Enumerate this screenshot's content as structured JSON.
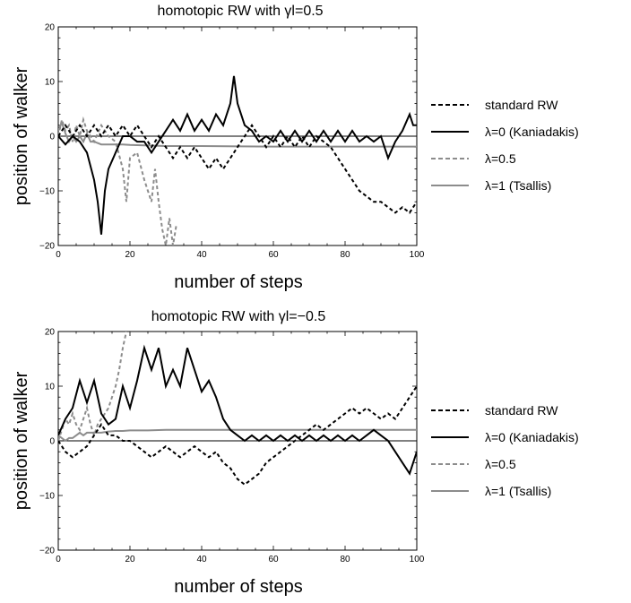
{
  "figure": {
    "chart_data": [
      {
        "type": "line",
        "title": "homotopic RW with γl=0.5",
        "xlabel": "number of steps",
        "ylabel": "position of walker",
        "xlim": [
          0,
          100
        ],
        "ylim": [
          -20,
          20
        ],
        "xticks": [
          "0",
          "20",
          "40",
          "60",
          "80",
          "100"
        ],
        "yticks": [
          "-20",
          "-10",
          "0",
          "10",
          "20"
        ],
        "legend_position": "right",
        "series": [
          {
            "name": "standard RW",
            "color": "#000000",
            "dash": "dashed",
            "x": [
              0,
              2,
              4,
              6,
              8,
              10,
              12,
              14,
              16,
              18,
              20,
              22,
              24,
              26,
              28,
              30,
              32,
              34,
              36,
              38,
              40,
              42,
              44,
              46,
              48,
              50,
              52,
              54,
              56,
              58,
              60,
              62,
              64,
              66,
              68,
              70,
              72,
              74,
              76,
              78,
              80,
              82,
              84,
              86,
              88,
              90,
              92,
              94,
              96,
              98,
              100
            ],
            "y": [
              0,
              2,
              0,
              2,
              0,
              2,
              0,
              2,
              0,
              2,
              0,
              2,
              0,
              -2,
              0,
              -2,
              -4,
              -2,
              -4,
              -2,
              -4,
              -6,
              -4,
              -6,
              -4,
              -2,
              0,
              2,
              0,
              -2,
              0,
              -2,
              0,
              -2,
              0,
              -2,
              0,
              -1,
              -2,
              -4,
              -6,
              -8,
              -10,
              -11,
              -12,
              -12,
              -13,
              -14,
              -13,
              -14,
              -12
            ]
          },
          {
            "name": "λ=0 (Kaniadakis)",
            "color": "#000000",
            "dash": "solid",
            "x": [
              0,
              2,
              4,
              6,
              8,
              10,
              11,
              12,
              13,
              14,
              16,
              18,
              20,
              22,
              24,
              26,
              28,
              30,
              32,
              34,
              36,
              38,
              40,
              42,
              44,
              46,
              48,
              49,
              50,
              52,
              54,
              56,
              58,
              60,
              62,
              64,
              66,
              68,
              70,
              72,
              74,
              76,
              78,
              80,
              82,
              84,
              86,
              88,
              90,
              92,
              94,
              96,
              98,
              99,
              100
            ],
            "y": [
              0,
              -1.5,
              0,
              -1,
              -3,
              -8,
              -12,
              -18,
              -10,
              -6,
              -3,
              0,
              0,
              -1,
              -1,
              -3,
              -1,
              1,
              3,
              1,
              4,
              1,
              3,
              1,
              4,
              2,
              6,
              11,
              6,
              2,
              1,
              -1,
              0,
              -1,
              1,
              -1,
              1,
              -1,
              1,
              -1,
              1,
              -1,
              1,
              -1,
              1,
              -1,
              0,
              -1,
              0,
              -4,
              -1,
              1,
              4,
              2,
              2
            ]
          },
          {
            "name": "λ=0.5",
            "color": "#8c8c8c",
            "dash": "dashed",
            "x": [
              0,
              1,
              2,
              3,
              4,
              5,
              6,
              7,
              8,
              10,
              12,
              14,
              16,
              18,
              19,
              20,
              22,
              24,
              26,
              27,
              28,
              29,
              30,
              31,
              32,
              33
            ],
            "y": [
              0,
              3,
              1,
              2,
              -1,
              2,
              0,
              3,
              1,
              -1,
              2,
              0,
              -1,
              -6,
              -12,
              -4,
              -3,
              -8,
              -12,
              -6,
              -12,
              -17,
              -20,
              -15,
              -20,
              -16
            ]
          },
          {
            "name": "λ=1 (Tsallis)",
            "color": "#8c8c8c",
            "dash": "solid",
            "x": [
              0,
              1,
              2,
              3,
              4,
              5,
              6,
              7,
              8,
              9,
              10,
              12,
              14,
              16,
              18,
              20,
              25,
              30,
              40,
              60,
              80,
              100
            ],
            "y": [
              1,
              2.5,
              0.5,
              -1,
              0,
              -1,
              0,
              -1,
              0.5,
              -1,
              -1,
              -1.5,
              -1.5,
              -1.5,
              -1.5,
              -1.6,
              -1.7,
              -1.8,
              -1.8,
              -1.9,
              -1.9,
              -1.9
            ]
          }
        ]
      },
      {
        "type": "line",
        "title": "homotopic RW with γl=−0.5",
        "xlabel": "number of steps",
        "ylabel": "position of walker",
        "xlim": [
          0,
          100
        ],
        "ylim": [
          -20,
          20
        ],
        "xticks": [
          "0",
          "20",
          "40",
          "60",
          "80",
          "100"
        ],
        "yticks": [
          "-20",
          "-10",
          "0",
          "10",
          "20"
        ],
        "legend_position": "right",
        "series": [
          {
            "name": "standard RW",
            "color": "#000000",
            "dash": "dashed",
            "x": [
              0,
              2,
              4,
              6,
              8,
              10,
              12,
              14,
              16,
              18,
              20,
              22,
              24,
              26,
              28,
              30,
              32,
              34,
              36,
              38,
              40,
              42,
              44,
              46,
              48,
              50,
              52,
              54,
              56,
              58,
              60,
              62,
              64,
              66,
              68,
              70,
              72,
              74,
              76,
              78,
              80,
              82,
              84,
              86,
              88,
              90,
              92,
              94,
              96,
              98,
              100
            ],
            "y": [
              0,
              -2,
              -3,
              -2,
              -1,
              1,
              3,
              1,
              1,
              0,
              0,
              -1,
              -2,
              -3,
              -2,
              -1,
              -2,
              -3,
              -2,
              -1,
              -2,
              -3,
              -2,
              -4,
              -5,
              -7,
              -8,
              -7,
              -6,
              -4,
              -3,
              -2,
              -1,
              0,
              1,
              2,
              3,
              2,
              3,
              4,
              5,
              6,
              5,
              6,
              5,
              4,
              5,
              4,
              6,
              8,
              10
            ]
          },
          {
            "name": "λ=0 (Kaniadakis)",
            "color": "#000000",
            "dash": "solid",
            "x": [
              0,
              2,
              4,
              6,
              8,
              10,
              12,
              14,
              16,
              18,
              20,
              22,
              24,
              26,
              28,
              30,
              32,
              34,
              36,
              38,
              40,
              42,
              44,
              46,
              48,
              50,
              52,
              54,
              56,
              58,
              60,
              62,
              64,
              66,
              68,
              70,
              72,
              74,
              76,
              78,
              80,
              82,
              84,
              86,
              88,
              90,
              92,
              94,
              96,
              98,
              100
            ],
            "y": [
              1,
              4,
              6,
              11,
              7,
              11,
              5,
              3,
              4,
              10,
              6,
              11,
              17,
              13,
              17,
              10,
              13,
              10,
              17,
              13,
              9,
              11,
              8,
              4,
              2,
              1,
              0,
              1,
              0,
              1,
              0,
              1,
              0,
              1,
              0,
              1,
              0,
              1,
              0,
              1,
              0,
              1,
              0,
              1,
              2,
              1,
              0,
              -2,
              -4,
              -6,
              -2
            ]
          },
          {
            "name": "λ=0.5",
            "color": "#8c8c8c",
            "dash": "dashed",
            "x": [
              0,
              1,
              2,
              3,
              4,
              5,
              6,
              7,
              8,
              9,
              10,
              11,
              12,
              13,
              14,
              15,
              16,
              17,
              18,
              19
            ],
            "y": [
              0,
              2,
              4,
              3,
              5,
              3,
              2,
              4,
              6,
              3,
              1,
              3,
              4,
              5,
              6,
              8,
              10,
              13,
              17,
              20
            ]
          },
          {
            "name": "λ=1 (Tsallis)",
            "color": "#8c8c8c",
            "dash": "solid",
            "x": [
              0,
              1,
              2,
              3,
              4,
              5,
              6,
              7,
              8,
              9,
              10,
              12,
              14,
              16,
              18,
              20,
              25,
              30,
              40,
              60,
              80,
              100
            ],
            "y": [
              1,
              0.5,
              0,
              0.5,
              0.5,
              1,
              1.5,
              1,
              1.5,
              1.5,
              1.5,
              1.5,
              1.7,
              1.8,
              1.8,
              1.9,
              1.9,
              2,
              2,
              2,
              2,
              2
            ]
          }
        ]
      }
    ]
  }
}
